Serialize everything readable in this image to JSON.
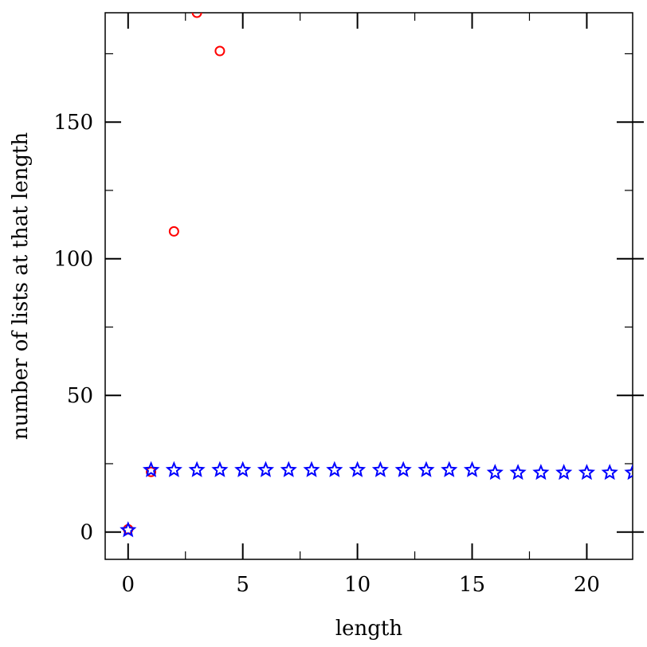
{
  "chart_data": {
    "type": "scatter",
    "xlabel": "length",
    "ylabel": "number of lists at that length",
    "xlim": [
      -1,
      22
    ],
    "ylim": [
      -10,
      190
    ],
    "x_ticks_major": [
      0,
      5,
      10,
      15,
      20
    ],
    "x_tick_labels": [
      "0",
      "5",
      "10",
      "15",
      "20"
    ],
    "y_ticks_major": [
      0,
      50,
      100,
      150
    ],
    "y_tick_labels": [
      "0",
      "50",
      "100",
      "150"
    ],
    "x_ticks_minor": [
      2.5,
      7.5,
      12.5,
      17.5
    ],
    "y_ticks_minor": [
      25,
      75,
      125,
      175
    ],
    "grid": false,
    "series": [
      {
        "marker": "circle",
        "color": "#ff0000",
        "x": [
          0,
          1,
          2,
          3,
          4
        ],
        "y": [
          1,
          22,
          110,
          190,
          176
        ]
      },
      {
        "marker": "star",
        "color": "#0000ff",
        "x": [
          0,
          1,
          2,
          3,
          4,
          5,
          6,
          7,
          8,
          9,
          10,
          11,
          12,
          13,
          14,
          15,
          16,
          17,
          18,
          19,
          20,
          21,
          22
        ],
        "y": [
          1,
          23,
          23,
          23,
          23,
          23,
          23,
          23,
          23,
          23,
          23,
          23,
          23,
          23,
          23,
          23,
          22,
          22,
          22,
          22,
          22,
          22,
          22
        ]
      }
    ]
  }
}
